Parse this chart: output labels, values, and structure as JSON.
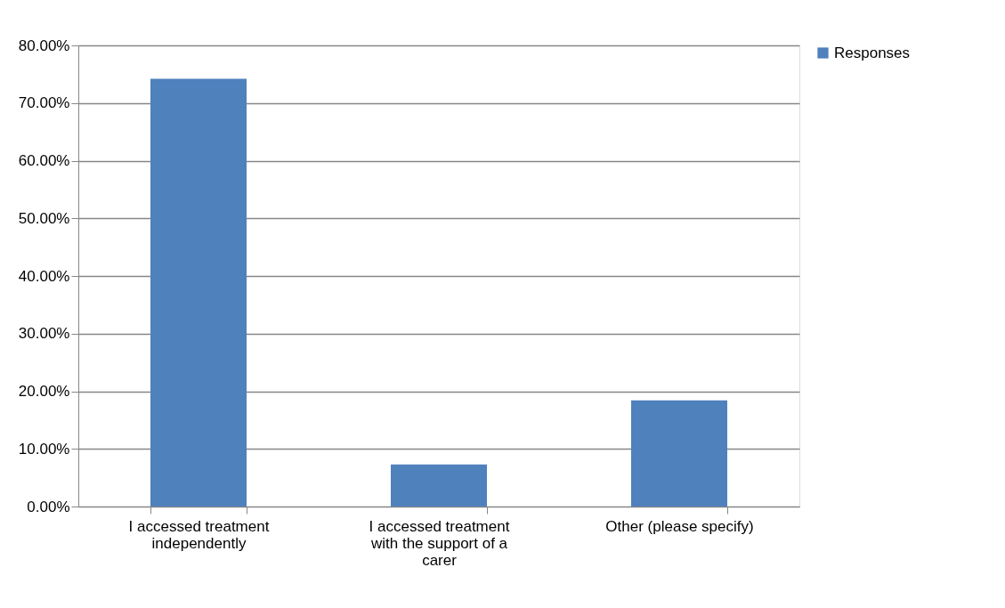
{
  "chart_data": {
    "type": "bar",
    "categories": [
      "I accessed treatment independently",
      "I accessed treatment with the support of a carer",
      "Other (please specify)"
    ],
    "series": [
      {
        "name": "Responses",
        "color": "#4f81bd",
        "values": [
          74.2,
          7.3,
          18.4
        ]
      }
    ],
    "ylim": [
      0,
      80
    ],
    "yticks": [
      {
        "value": 0,
        "label": "0.00%"
      },
      {
        "value": 10,
        "label": "10.00%"
      },
      {
        "value": 20,
        "label": "20.00%"
      },
      {
        "value": 30,
        "label": "30.00%"
      },
      {
        "value": 40,
        "label": "40.00%"
      },
      {
        "value": 50,
        "label": "50.00%"
      },
      {
        "value": 60,
        "label": "60.00%"
      },
      {
        "value": 70,
        "label": "70.00%"
      },
      {
        "value": 80,
        "label": "80.00%"
      }
    ],
    "grid": "y",
    "legend": "right"
  }
}
